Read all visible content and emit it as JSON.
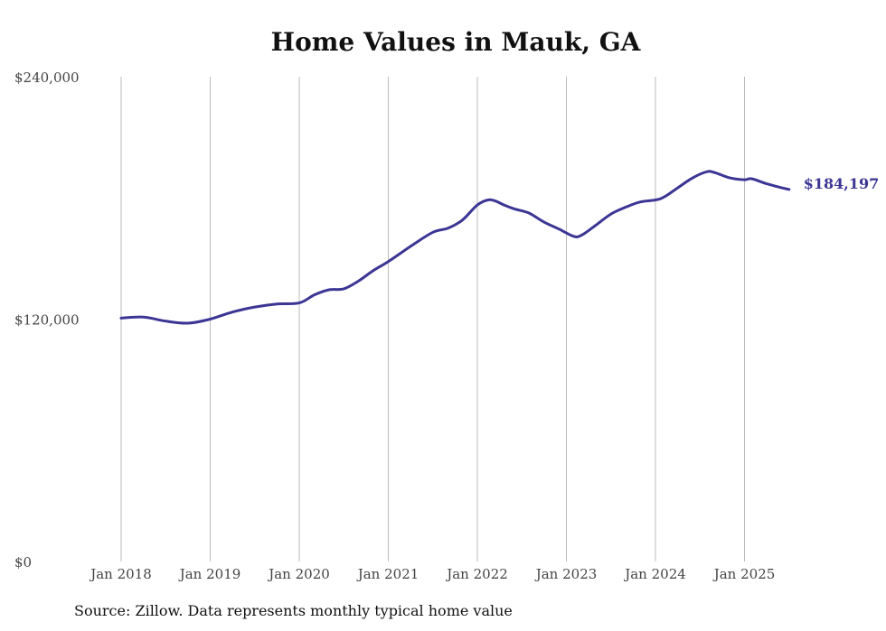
{
  "chart_data": {
    "type": "line",
    "title": "Home Values in Mauk, GA",
    "ylim": [
      0,
      240000
    ],
    "yticks": [
      {
        "value": 0,
        "label": "$0"
      },
      {
        "value": 120000,
        "label": "$120,000"
      },
      {
        "value": 240000,
        "label": "$240,000"
      }
    ],
    "xticks": [
      {
        "value": 2018.0,
        "label": "Jan 2018"
      },
      {
        "value": 2019.0,
        "label": "Jan 2019"
      },
      {
        "value": 2020.0,
        "label": "Jan 2020"
      },
      {
        "value": 2021.0,
        "label": "Jan 2021"
      },
      {
        "value": 2022.0,
        "label": "Jan 2022"
      },
      {
        "value": 2023.0,
        "label": "Jan 2023"
      },
      {
        "value": 2024.0,
        "label": "Jan 2024"
      },
      {
        "value": 2025.0,
        "label": "Jan 2025"
      }
    ],
    "grid": "vertical",
    "color": "#3b3594",
    "series": [
      {
        "x": [
          2018.0,
          2018.25,
          2018.5,
          2018.75,
          2019.0,
          2019.25,
          2019.5,
          2019.75,
          2020.0,
          2020.17,
          2020.33,
          2020.5,
          2020.67,
          2020.83,
          2021.0,
          2021.25,
          2021.5,
          2021.67,
          2021.83,
          2022.0,
          2022.12,
          2022.2,
          2022.3,
          2022.42,
          2022.58,
          2022.75,
          2022.92,
          2023.08,
          2023.17,
          2023.33,
          2023.5,
          2023.67,
          2023.83,
          2024.0,
          2024.1,
          2024.25,
          2024.42,
          2024.58,
          2024.67,
          2024.83,
          2025.0,
          2025.08,
          2025.25,
          2025.42,
          2025.5
        ],
        "values": [
          120500,
          121000,
          119000,
          118000,
          120000,
          123500,
          126000,
          127500,
          128000,
          132000,
          134500,
          135000,
          139000,
          144000,
          148500,
          156000,
          163000,
          165000,
          169000,
          176500,
          179000,
          178500,
          176500,
          174500,
          172500,
          168000,
          164500,
          161000,
          161500,
          166500,
          172000,
          175500,
          178000,
          179000,
          180500,
          185000,
          190000,
          193000,
          192500,
          190000,
          189000,
          189500,
          187000,
          185000,
          184197
        ]
      }
    ],
    "end_label": "$184,197",
    "source": "Source: Zillow. Data represents monthly typical home value"
  }
}
